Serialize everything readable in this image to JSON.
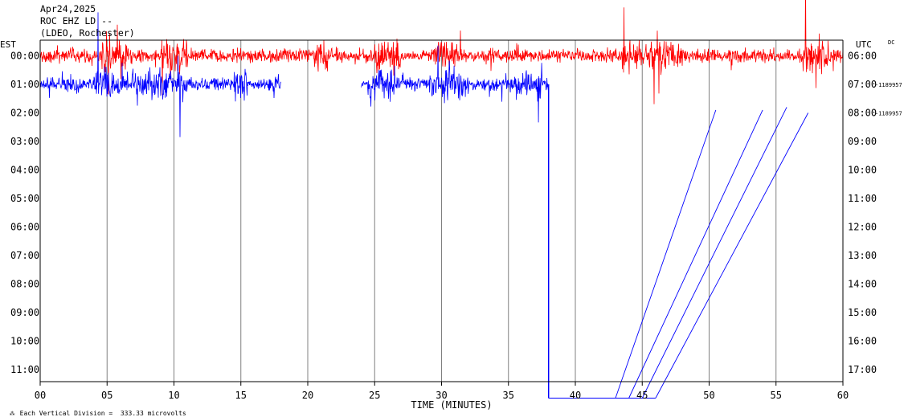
{
  "header": {
    "date": "Apr24,2025",
    "station": "ROC EHZ LD --",
    "network": "(LDEO, Rochester)"
  },
  "left_zone": "EST",
  "right_zone": "UTC",
  "dc_label": "DC",
  "footer": {
    "icon": "logo-glyph",
    "note": "Each Vertical Division =  333.33 microvolts"
  },
  "colors": {
    "trace_red": "#ff0000",
    "trace_blue": "#0000ff",
    "axis": "#000000",
    "grid": "#808080",
    "background": "#ffffff"
  },
  "chart_data": {
    "type": "line",
    "title": "ROC EHZ LD --",
    "xlabel": "TIME (MINUTES)",
    "x_ticks": [
      "00",
      "05",
      "10",
      "15",
      "20",
      "25",
      "30",
      "35",
      "40",
      "45",
      "50",
      "55",
      "60"
    ],
    "xlim": [
      0,
      60
    ],
    "left_ticks": [
      "00:00",
      "01:00",
      "02:00",
      "03:00",
      "04:00",
      "05:00",
      "06:00",
      "07:00",
      "08:00",
      "09:00",
      "10:00",
      "11:00"
    ],
    "right_ticks": [
      "06:00",
      "07:00",
      "08:00",
      "09:00",
      "10:00",
      "11:00",
      "12:00",
      "13:00",
      "14:00",
      "15:00",
      "16:00",
      "17:00"
    ],
    "row_offsets": [
      {
        "row": 1,
        "label": "-1189957"
      },
      {
        "row": 2,
        "label": "-1189957"
      }
    ],
    "vertical_grid": true,
    "series": [
      {
        "row": 0,
        "color": "#ff0000",
        "start_min": 0,
        "end_min": 60,
        "amplitude": "high",
        "bursts": [
          [
            4.5,
            6.5
          ],
          [
            9,
            11
          ],
          [
            20.5,
            21.5
          ],
          [
            25,
            27
          ],
          [
            29.5,
            31.5
          ],
          [
            43.5,
            48
          ],
          [
            57,
            59
          ]
        ]
      },
      {
        "row": 1,
        "color": "#0000ff",
        "start_min": 0,
        "end_min": 18,
        "gap_after": true,
        "amplitude": "high",
        "bursts": [
          [
            4,
            11
          ],
          [
            14.5,
            15.5
          ]
        ]
      },
      {
        "row": 1,
        "color": "#0000ff",
        "start_min": 24,
        "end_min": 38,
        "amplitude": "high",
        "bursts": [
          [
            24.5,
            26.5
          ],
          [
            29,
            32
          ],
          [
            35.5,
            37.5
          ]
        ]
      }
    ],
    "drops": [
      {
        "minute": 38.0,
        "from_row": 1,
        "to_row": 12
      }
    ],
    "diagonals": [
      [
        43.0,
        12.0,
        50.5,
        1.9
      ],
      [
        44.0,
        12.0,
        54.0,
        1.9
      ],
      [
        45.0,
        12.0,
        55.8,
        1.8
      ],
      [
        46.0,
        12.0,
        57.4,
        2.0
      ]
    ],
    "bottom_segment": [
      38.0,
      46.0
    ]
  }
}
